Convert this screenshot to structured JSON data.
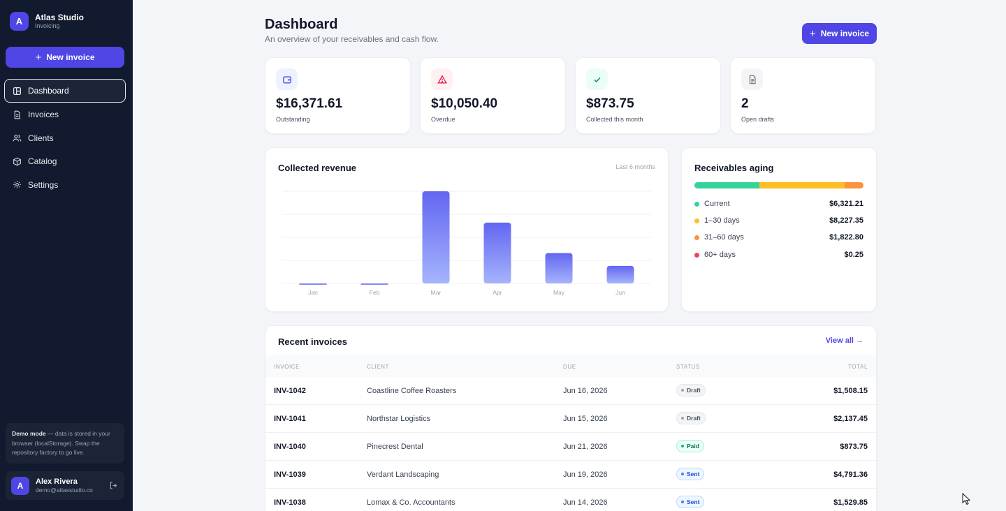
{
  "sidebar": {
    "brand_initial": "A",
    "brand_name": "Atlas Studio",
    "brand_sub": "Invoicing",
    "new_invoice_label": "New invoice",
    "items": [
      {
        "label": "Dashboard",
        "icon": "dashboard-icon",
        "active": true
      },
      {
        "label": "Invoices",
        "icon": "document-icon",
        "active": false
      },
      {
        "label": "Clients",
        "icon": "users-icon",
        "active": false
      },
      {
        "label": "Catalog",
        "icon": "box-icon",
        "active": false
      },
      {
        "label": "Settings",
        "icon": "gear-icon",
        "active": false
      }
    ],
    "demo_title": "Demo mode",
    "demo_text": "— data is stored in your browser (localStorage). Swap the repository factory to go live.",
    "user_initial": "A",
    "user_name": "Alex Rivera",
    "user_email": "demo@atlasstudio.co"
  },
  "header": {
    "title": "Dashboard",
    "subtitle": "An overview of your receivables and cash flow.",
    "new_invoice_label": "New invoice"
  },
  "stats": [
    {
      "value": "$16,371.61",
      "label": "Outstanding",
      "icon": "wallet-icon",
      "color": "#4f46e5",
      "bg": "#eef2ff"
    },
    {
      "value": "$10,050.40",
      "label": "Overdue",
      "icon": "warning-icon",
      "color": "#e11d48",
      "bg": "#fff1f2"
    },
    {
      "value": "$873.75",
      "label": "Collected this month",
      "icon": "check-icon",
      "color": "#059669",
      "bg": "#ecfdf5"
    },
    {
      "value": "2",
      "label": "Open drafts",
      "icon": "file-icon",
      "color": "#6b7280",
      "bg": "#f3f4f6"
    }
  ],
  "revenue": {
    "title": "Collected revenue",
    "range_label": "Last 6 months"
  },
  "chart_data": {
    "type": "bar",
    "categories": [
      "Jan",
      "Feb",
      "Mar",
      "Apr",
      "May",
      "Jun"
    ],
    "values": [
      0,
      0,
      100,
      66,
      33,
      19
    ],
    "ylim": [
      0,
      100
    ],
    "grid": true,
    "color_top": "#6366f1",
    "color_bottom": "#a5b4fc"
  },
  "aging": {
    "title": "Receivables aging",
    "buckets": [
      {
        "label": "Current",
        "amount": "$6,321.21",
        "value": 6321.21,
        "color": "#34d399"
      },
      {
        "label": "1–30 days",
        "amount": "$8,227.35",
        "value": 8227.35,
        "color": "#fbbf24"
      },
      {
        "label": "31–60 days",
        "amount": "$1,822.80",
        "value": 1822.8,
        "color": "#fb923c"
      },
      {
        "label": "60+ days",
        "amount": "$0.25",
        "value": 0.25,
        "color": "#f43f5e"
      }
    ]
  },
  "recent": {
    "title": "Recent invoices",
    "view_all": "View all →",
    "columns": [
      "INVOICE",
      "CLIENT",
      "DUE",
      "STATUS",
      "TOTAL"
    ],
    "rows": [
      {
        "invoice": "INV-1042",
        "client": "Coastline Coffee Roasters",
        "due": "Jun 16, 2026",
        "status": "Draft",
        "total": "$1,508.15"
      },
      {
        "invoice": "INV-1041",
        "client": "Northstar Logistics",
        "due": "Jun 15, 2026",
        "status": "Draft",
        "total": "$2,137.45"
      },
      {
        "invoice": "INV-1040",
        "client": "Pinecrest Dental",
        "due": "Jun 21, 2026",
        "status": "Paid",
        "total": "$873.75"
      },
      {
        "invoice": "INV-1039",
        "client": "Verdant Landscaping",
        "due": "Jun 19, 2026",
        "status": "Sent",
        "total": "$4,791.36"
      },
      {
        "invoice": "INV-1038",
        "client": "Lomax & Co. Accountants",
        "due": "Jun 14, 2026",
        "status": "Sent",
        "total": "$1,529.85"
      }
    ]
  }
}
